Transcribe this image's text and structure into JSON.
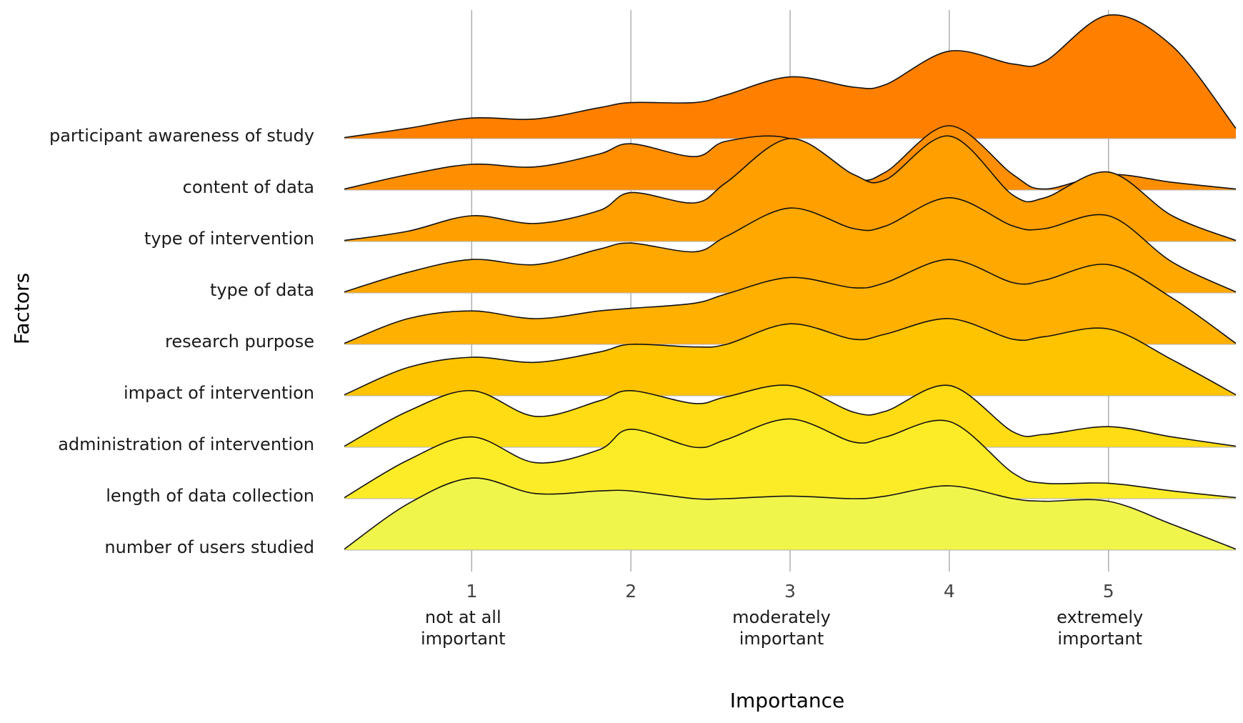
{
  "chart_data": {
    "type": "ridgeline",
    "xlabel": "Importance",
    "ylabel": "Factors",
    "xlim": [
      0.2,
      5.8
    ],
    "x_ticks": [
      1,
      2,
      3,
      4,
      5
    ],
    "x_tick_labels": [
      "1",
      "2",
      "3",
      "4",
      "5"
    ],
    "x_tick_descriptions": [
      {
        "x": 1,
        "lines": [
          "not at all",
          "important"
        ]
      },
      {
        "x": 3,
        "lines": [
          "moderately",
          "important"
        ]
      },
      {
        "x": 5,
        "lines": [
          "extremely",
          "important"
        ]
      }
    ],
    "grid": {
      "vertical": true,
      "horizontal": false
    },
    "categories": [
      "participant awareness of study",
      "content of data",
      "type of intervention",
      "type of data",
      "research purpose",
      "impact of intervention",
      "administration of intervention",
      "length of data collection",
      "number of users studied"
    ],
    "series_colors": [
      "#FF8000",
      "#FF8E00",
      "#FF9F00",
      "#FFA800",
      "#FFB000",
      "#FFC400",
      "#FFDC14",
      "#FCEC28",
      "#F0F54C"
    ],
    "density_x": [
      0.2,
      0.6,
      1.0,
      1.4,
      1.8,
      2.0,
      2.4,
      2.6,
      3.0,
      3.4,
      3.6,
      4.0,
      4.4,
      4.6,
      5.0,
      5.4,
      5.8
    ],
    "series": [
      {
        "name": "participant awareness of study",
        "density": [
          0.02,
          0.2,
          0.4,
          0.38,
          0.6,
          0.7,
          0.7,
          0.85,
          1.2,
          1.0,
          1.05,
          1.7,
          1.45,
          1.5,
          2.4,
          1.8,
          0.2
        ]
      },
      {
        "name": "content of data",
        "density": [
          0.02,
          0.3,
          0.5,
          0.45,
          0.7,
          0.9,
          0.65,
          0.95,
          1.0,
          0.25,
          0.35,
          1.25,
          0.3,
          0.02,
          0.3,
          0.15,
          0.02
        ]
      },
      {
        "name": "type of intervention",
        "density": [
          0.02,
          0.2,
          0.5,
          0.35,
          0.6,
          0.95,
          0.75,
          1.15,
          2.0,
          1.3,
          1.2,
          2.05,
          0.9,
          0.85,
          1.35,
          0.5,
          0.02
        ]
      },
      {
        "name": "type of data",
        "density": [
          0.02,
          0.4,
          0.65,
          0.55,
          0.85,
          0.97,
          0.8,
          1.1,
          1.65,
          1.25,
          1.3,
          1.85,
          1.3,
          1.25,
          1.5,
          0.6,
          0.02
        ]
      },
      {
        "name": "research purpose",
        "density": [
          0.02,
          0.5,
          0.65,
          0.5,
          0.65,
          0.7,
          0.8,
          0.98,
          1.3,
          1.1,
          1.2,
          1.65,
          1.2,
          1.25,
          1.55,
          0.9,
          0.02
        ]
      },
      {
        "name": "impact of intervention",
        "density": [
          0.02,
          0.55,
          0.75,
          0.65,
          0.85,
          1.0,
          0.95,
          1.0,
          1.4,
          1.1,
          1.2,
          1.5,
          1.1,
          1.15,
          1.3,
          0.7,
          0.02
        ]
      },
      {
        "name": "administration of intervention",
        "density": [
          0.02,
          0.7,
          1.1,
          0.6,
          0.9,
          1.1,
          0.85,
          0.98,
          1.2,
          0.68,
          0.7,
          1.2,
          0.3,
          0.25,
          0.4,
          0.2,
          0.02
        ]
      },
      {
        "name": "length of data collection",
        "density": [
          0.02,
          0.75,
          1.2,
          0.7,
          0.95,
          1.35,
          1.0,
          1.15,
          1.55,
          1.1,
          1.2,
          1.5,
          0.5,
          0.3,
          0.3,
          0.15,
          0.02
        ]
      },
      {
        "name": "number of users studied",
        "density": [
          0.02,
          0.9,
          1.4,
          1.1,
          1.15,
          1.15,
          1.0,
          1.0,
          1.05,
          1.0,
          1.05,
          1.25,
          1.0,
          0.95,
          0.95,
          0.5,
          0.02
        ]
      }
    ]
  }
}
